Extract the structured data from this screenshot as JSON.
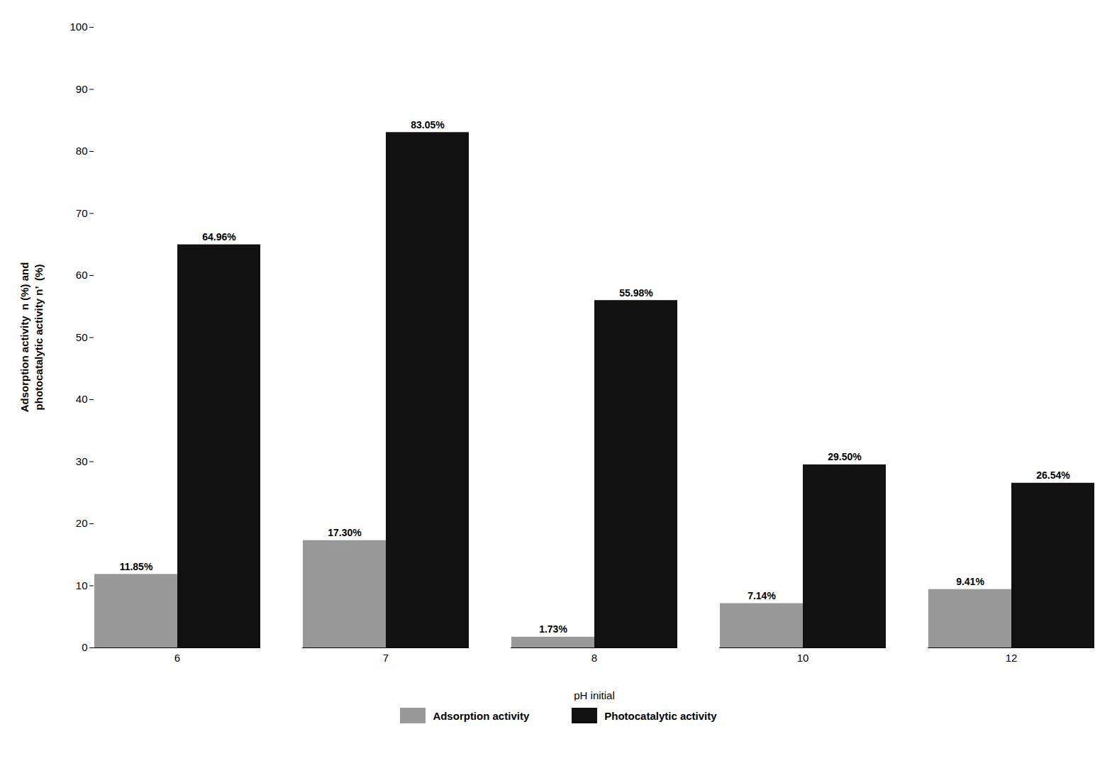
{
  "chart_data": {
    "type": "bar",
    "categories": [
      "6",
      "7",
      "8",
      "10",
      "12"
    ],
    "series": [
      {
        "name": "Adsorption activity",
        "color": "#999999",
        "values": [
          11.85,
          17.3,
          1.73,
          7.14,
          9.41
        ],
        "value_labels": [
          "11.85%",
          "17.30%",
          "1.73%",
          "7.14%",
          "9.41%"
        ]
      },
      {
        "name": "Photocatalytic activity",
        "color": "#111111",
        "values": [
          64.96,
          83.05,
          55.98,
          29.5,
          26.54
        ],
        "value_labels": [
          "64.96%",
          "83.05%",
          "55.98%",
          "29.50%",
          "26.54%"
        ]
      }
    ],
    "xlabel": "pH initial",
    "ylabel": "Adsorption activity  n (%) and\nphotocatalytic activity n’  (%)",
    "ylim": [
      0,
      100
    ],
    "yticks": [
      0,
      10,
      20,
      30,
      40,
      50,
      60,
      70,
      80,
      90,
      100
    ],
    "data_labels": true,
    "grid": false,
    "legend": "bottom"
  }
}
